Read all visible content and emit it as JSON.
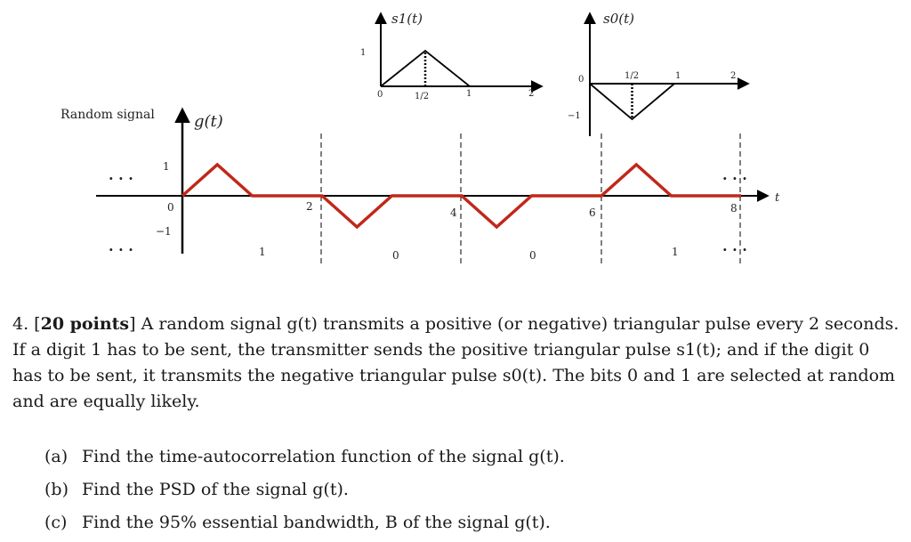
{
  "figure": {
    "s1": {
      "title": "s1(t)",
      "y_tick": "1",
      "x_ticks": [
        "0",
        "1/2",
        "1",
        "2"
      ],
      "pulse": [
        [
          0,
          0
        ],
        [
          0.5,
          1
        ],
        [
          1,
          0
        ]
      ]
    },
    "s0": {
      "title": "s0(t)",
      "y_ticks": [
        "0",
        "−1"
      ],
      "x_ticks": [
        "1/2",
        "1",
        "2"
      ],
      "pulse": [
        [
          0,
          0
        ],
        [
          0.5,
          -1
        ],
        [
          1,
          0
        ]
      ]
    },
    "g": {
      "side_label": "Random signal",
      "title": "g(t)",
      "axis_label": "t",
      "y_ticks": [
        "1",
        "0",
        "−1"
      ],
      "x_ticks": [
        "2",
        "4",
        "6",
        "8"
      ],
      "bits": [
        "1",
        "0",
        "0",
        "1"
      ],
      "ellipsis": "· · ·",
      "waveform": [
        [
          0,
          0
        ],
        [
          0.5,
          1
        ],
        [
          1,
          0
        ],
        [
          2,
          0
        ],
        [
          2.5,
          -1
        ],
        [
          3,
          0
        ],
        [
          4,
          0
        ],
        [
          4.5,
          -1
        ],
        [
          5,
          0
        ],
        [
          6,
          0
        ],
        [
          6.5,
          1
        ],
        [
          7,
          0
        ],
        [
          8,
          0
        ]
      ],
      "line_color": "#c0281a"
    }
  },
  "problem": {
    "number": "4.",
    "points": "20 points",
    "text": "A random signal g(t) transmits a positive (or negative) triangular pulse every 2 seconds. If a digit 1 has to be sent, the transmitter sends the positive triangular pulse s1(t); and if the digit 0 has to be sent, it transmits the negative triangular pulse s0(t). The bits 0 and 1 are selected at random and are equally likely.",
    "parts": [
      {
        "label": "(a)",
        "text": "Find the time-autocorrelation function of the signal g(t)."
      },
      {
        "label": "(b)",
        "text": "Find the PSD of the signal g(t)."
      },
      {
        "label": "(c)",
        "text": "Find the 95% essential bandwidth, B of the signal g(t)."
      }
    ]
  }
}
